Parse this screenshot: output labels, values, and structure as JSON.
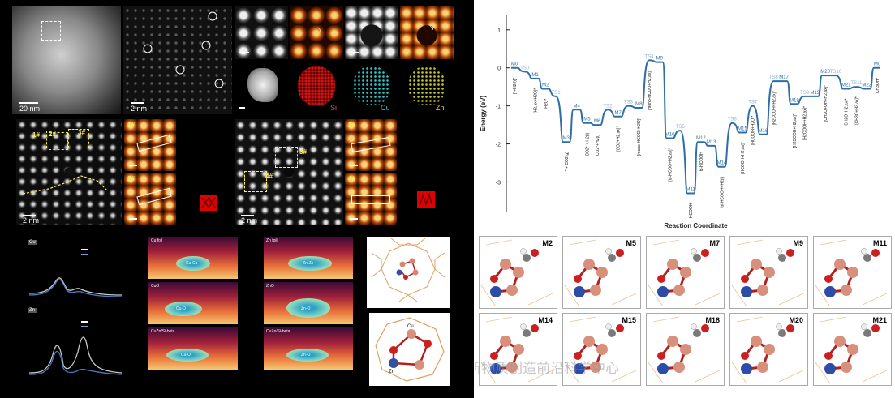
{
  "left": {
    "row1": {
      "scale_20nm": "20 nm",
      "scale_2nm": "2 nm",
      "eds_si": "Si",
      "eds_cu": "Cu",
      "eds_zn": "Zn"
    },
    "row2": {
      "sites": [
        "1#",
        "2#",
        "3#",
        "1#",
        "2#",
        "3#",
        "4#",
        "3#",
        "4#"
      ],
      "scale_2nm_a": "2 nm",
      "scale_2nm_b": "2 nm"
    },
    "row3": {
      "tag_cu": "Cu",
      "tag_zn": "Zn",
      "wt_titles": [
        "Cu foil",
        "Zn foil",
        "CuO",
        "ZnO",
        "CuZn/Si-beta",
        "CuZn/Si-beta"
      ],
      "wt_paths": [
        "Cu-Cu",
        "Zn-Zn",
        "Cu-O",
        "Zn-O",
        "Cu-O",
        "Zn-O"
      ],
      "model_labels": [
        "Cu",
        "Zn"
      ]
    }
  },
  "energy_profile": {
    "chart_data": {
      "type": "line",
      "title": "",
      "xlabel": "Reaction Coordinate",
      "ylabel": "Energy (eV)",
      "ylim": [
        -3.8,
        1.4
      ],
      "yticks": [
        1,
        0,
        -1,
        -2,
        -3
      ],
      "x": [
        "M0",
        "TS0",
        "M1",
        "M2",
        "TS1",
        "M3",
        "M4",
        "M5",
        "M6",
        "TS2",
        "M7",
        "TS3",
        "M8",
        "TS4",
        "M9",
        "M10",
        "TS5",
        "M11",
        "M12",
        "M13",
        "M14",
        "TS6",
        "M15",
        "TS7",
        "M16",
        "TS8",
        "M17",
        "M18",
        "TS9",
        "M19",
        "M20",
        "TS10",
        "M21",
        "TS11",
        "M22",
        "M0"
      ],
      "series": [
        {
          "values": [
            0,
            -0.1,
            -0.28,
            -0.55,
            -0.75,
            -1.95,
            -1.1,
            -1.45,
            -1.5,
            -1.1,
            -1.28,
            -1.0,
            -1.05,
            0.2,
            0.15,
            -1.85,
            -1.65,
            -3.3,
            -1.95,
            -2.05,
            -2.6,
            -1.45,
            -1.7,
            -1.0,
            -1.75,
            -0.35,
            -0.35,
            -0.95,
            -0.75,
            -0.75,
            -0.2,
            -0.2,
            -0.55,
            -0.5,
            -0.55,
            0
          ]
        }
      ],
      "species": [
        "[*+H2(l)]*",
        "[H2,ax+H2O]*",
        "H2O*",
        "* + CO2(g)",
        "CO2* + H2(l)",
        "CO2*+H2(l)",
        "[CO2+H2,ax]*",
        "[mono-HCOO+H2O]*",
        "[mono-HCOO+H2,ax]*",
        "[bi-HCOO+H2,ax]*",
        "HCOOH",
        "bi-HCOOH",
        "bi-HCOOH+H2(l)",
        "[HCOOH+H2,ax]*",
        "[HCOOH+H2O]*",
        "[H2COOH+H2,ax]*",
        "[H2COOH+H2,ax]*",
        "[H2COOH+H2,ax]*",
        "[CH2O+OH+H2,ax]*",
        "[CH2O+H2,ax]*",
        "[CH3O+H2,ax]*",
        "CH3OH*"
      ]
    }
  },
  "thumbs_row1": [
    "M2",
    "M5",
    "M7",
    "M9",
    "M11"
  ],
  "thumbs_row2": [
    "M14",
    "M15",
    "M18",
    "M20",
    "M21"
  ],
  "watermark": "公众号 · 有机新物质创造前沿科学中心"
}
